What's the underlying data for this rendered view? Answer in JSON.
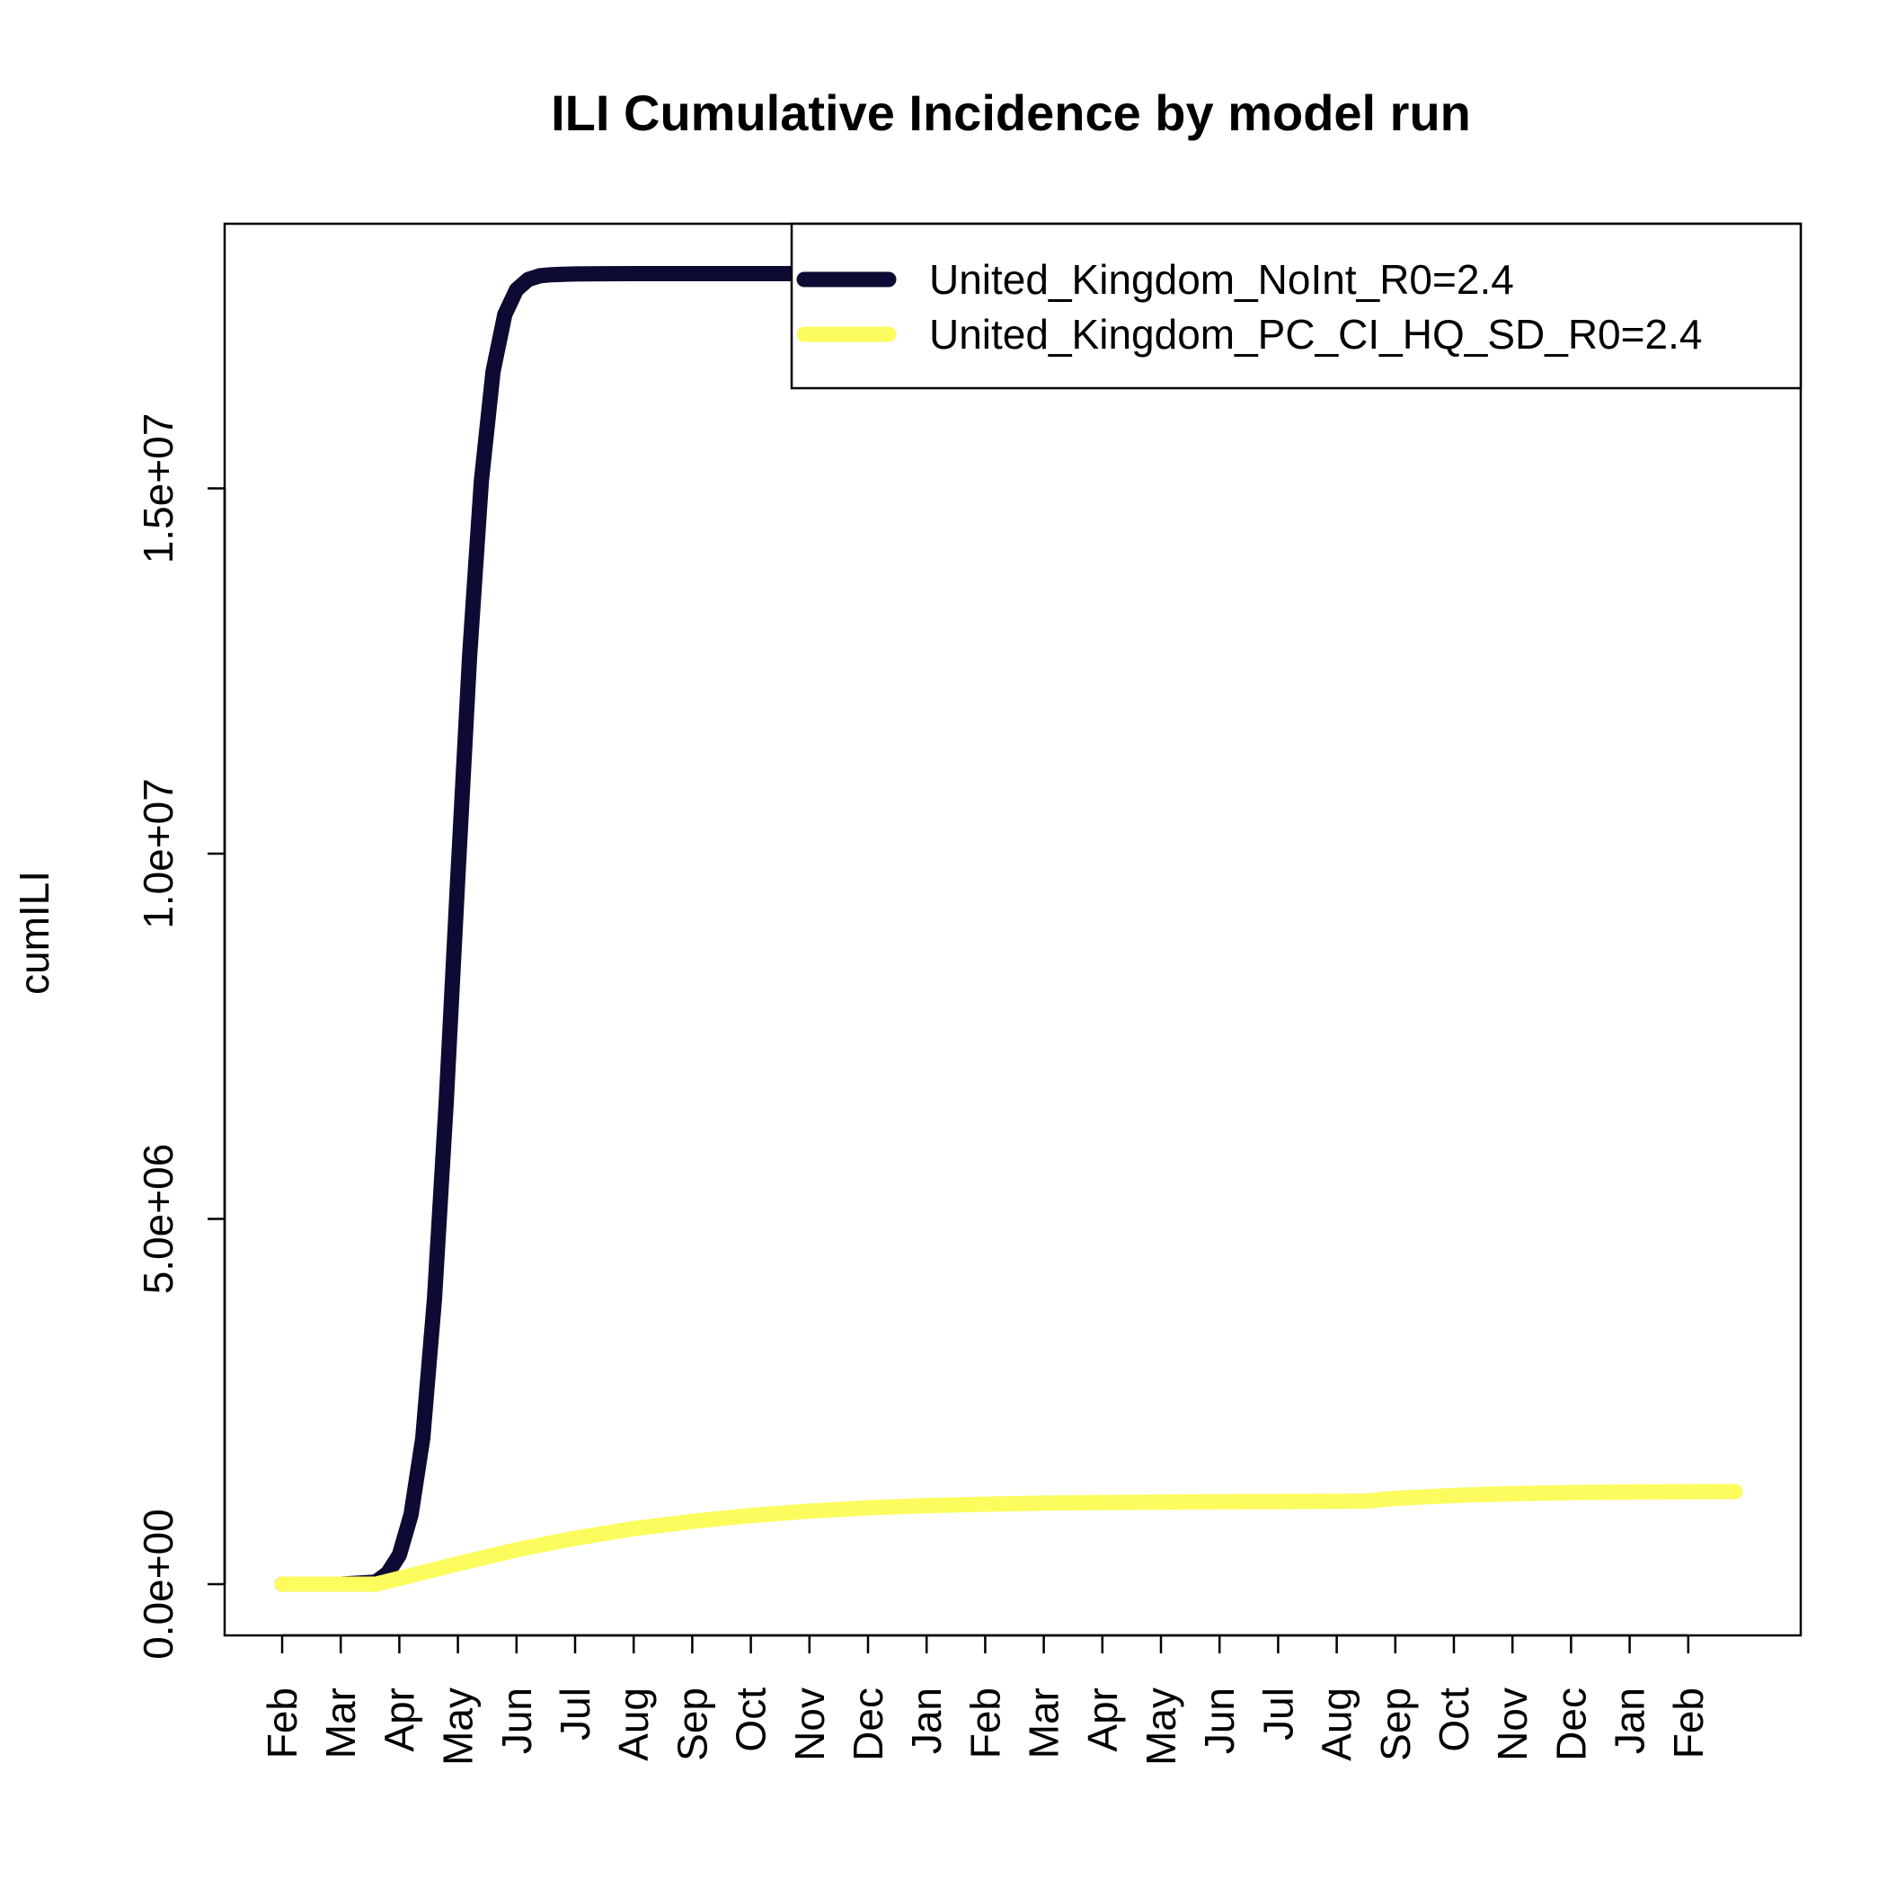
{
  "chart_data": {
    "type": "line",
    "title": "ILI Cumulative Incidence by model run",
    "xlabel": "",
    "ylabel": "cumILI",
    "ylim": [
      -1000000,
      18500000
    ],
    "xlim": [
      0,
      26
    ],
    "grid": false,
    "legend_position": "top-right",
    "x_tick_positions": [
      0,
      1,
      2,
      3,
      4,
      5,
      6,
      7,
      8,
      9,
      10,
      11,
      12,
      13,
      14,
      15,
      16,
      17,
      18,
      19,
      20,
      21,
      22,
      23,
      24
    ],
    "x_tick_labels": [
      "Feb",
      "Mar",
      "Apr",
      "May",
      "Jun",
      "Jul",
      "Aug",
      "Sep",
      "Oct",
      "Nov",
      "Dec",
      "Jan",
      "Feb",
      "Mar",
      "Apr",
      "May",
      "Jun",
      "Jul",
      "Aug",
      "Sep",
      "Oct",
      "Nov",
      "Dec",
      "Jan",
      "Feb"
    ],
    "y_ticks": [
      0,
      5000000,
      10000000,
      15000000
    ],
    "y_tick_labels": [
      "0.0e+00",
      "5.0e+06",
      "1.0e+07",
      "1.5e+07"
    ],
    "series": [
      {
        "name": "United_Kingdom_NoInt_R0=2.4",
        "color": "#0d0b33",
        "x": [
          0,
          1.0,
          1.6,
          1.8,
          2.0,
          2.2,
          2.4,
          2.6,
          2.8,
          3.0,
          3.2,
          3.4,
          3.6,
          3.8,
          4.0,
          4.2,
          4.4,
          4.6,
          4.8,
          5.0,
          5.5,
          6.0,
          7.0,
          8.0,
          9.0,
          10.0,
          11.0,
          12.0,
          13.0,
          14.0,
          15.0,
          16.0,
          17.0,
          18.0,
          19.0,
          20.0,
          21.0,
          22.0,
          23.0,
          24.0,
          24.8
        ],
        "values": [
          0,
          0,
          30000,
          150000,
          400000,
          950000,
          2000000,
          3900000,
          6600000,
          9700000,
          12700000,
          15100000,
          16600000,
          17380000,
          17720000,
          17860000,
          17910000,
          17925000,
          17930000,
          17935000,
          17938000,
          17940000,
          17940000,
          17940000,
          17940000,
          17940000,
          17940000,
          17940000,
          17940000,
          17940000,
          17940000,
          17940000,
          17940000,
          17940000,
          17940000,
          17940000,
          17940000,
          17940000,
          17940000,
          17940000,
          17940000
        ]
      },
      {
        "name": "United_Kingdom_PC_CI_HQ_SD_R0=2.4",
        "color": "#fcfc5e",
        "x": [
          0,
          1.0,
          1.6,
          2.0,
          3.0,
          4.0,
          5.0,
          6.0,
          7.0,
          8.0,
          9.0,
          10.0,
          11.0,
          12.0,
          13.0,
          14.0,
          15.0,
          16.0,
          17.0,
          18.0,
          18.5,
          19.0,
          20.0,
          21.0,
          22.0,
          23.0,
          24.0,
          24.8
        ],
        "values": [
          0,
          0,
          0,
          80000,
          280000,
          470000,
          630000,
          760000,
          860000,
          940000,
          1000000,
          1045000,
          1075000,
          1095000,
          1110000,
          1118000,
          1124000,
          1128000,
          1132000,
          1135000,
          1138000,
          1175000,
          1215000,
          1240000,
          1255000,
          1262000,
          1266000,
          1268000
        ]
      }
    ]
  }
}
